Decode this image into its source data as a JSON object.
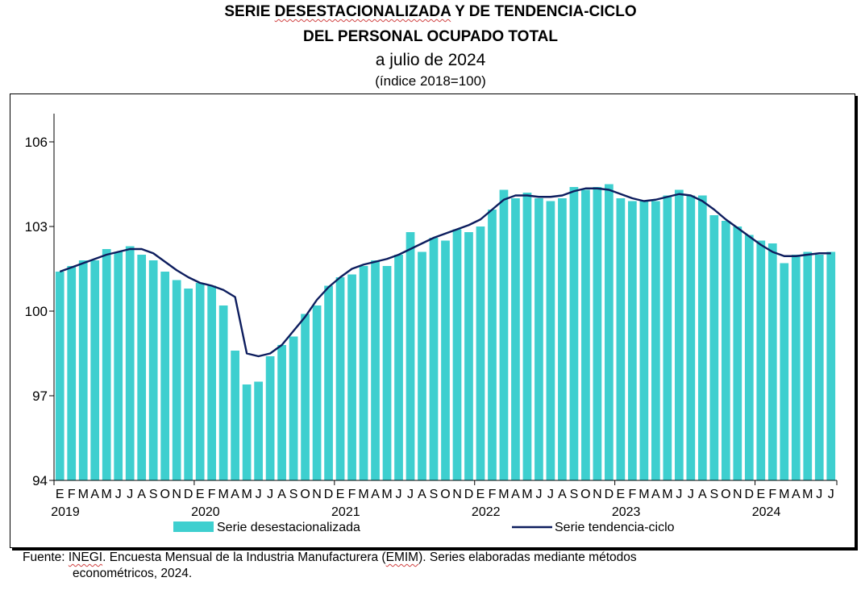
{
  "header": {
    "title_line1_pre": "SERIE ",
    "title_line1_squig": "DESESTACIONALIZADA",
    "title_line1_post": " Y DE TENDENCIA-CICLO",
    "title_line2": "DEL PERSONAL OCUPADO TOTAL",
    "subtitle": "a julio de 2024",
    "units": "(índice 2018=100)"
  },
  "source": {
    "prefix": "Fuente: ",
    "inegi": "INEGI",
    "part1": ". Encuesta Mensual de la Industria Manufacturera (",
    "emim": "EMIM",
    "part2": "). Series elaboradas mediante métodos",
    "line2": "econométricos, 2024."
  },
  "chart_data": {
    "type": "bar",
    "ylim": [
      94,
      107
    ],
    "yticks": [
      94,
      97,
      100,
      103,
      106
    ],
    "month_labels": [
      "E",
      "F",
      "M",
      "A",
      "M",
      "J",
      "J",
      "A",
      "S",
      "O",
      "N",
      "D"
    ],
    "years": [
      "2019",
      "2020",
      "2021",
      "2022",
      "2023",
      "2024"
    ],
    "series": [
      {
        "name": "Serie desestacionalizada",
        "kind": "bar",
        "color": "#3ecfcf",
        "values": [
          101.4,
          101.6,
          101.8,
          101.8,
          102.2,
          102.1,
          102.3,
          102.0,
          101.8,
          101.4,
          101.1,
          100.8,
          101.0,
          100.9,
          100.2,
          98.6,
          97.4,
          97.5,
          98.4,
          98.8,
          99.1,
          99.9,
          100.2,
          100.9,
          101.2,
          101.3,
          101.6,
          101.8,
          101.6,
          102.0,
          102.8,
          102.1,
          102.6,
          102.5,
          102.9,
          102.8,
          103.0,
          103.6,
          104.3,
          104.0,
          104.2,
          104.0,
          103.9,
          104.0,
          104.4,
          104.3,
          104.4,
          104.5,
          104.0,
          103.9,
          103.9,
          103.9,
          104.1,
          104.3,
          104.1,
          104.1,
          103.4,
          103.2,
          103.0,
          102.7,
          102.5,
          102.4,
          101.7,
          102.0,
          102.1,
          102.0,
          102.1
        ]
      },
      {
        "name": "Serie tendencia-ciclo",
        "kind": "line",
        "color": "#0d1d5e",
        "values": [
          101.4,
          101.55,
          101.7,
          101.85,
          102.0,
          102.1,
          102.2,
          102.2,
          102.05,
          101.75,
          101.45,
          101.2,
          101.0,
          100.9,
          100.75,
          100.5,
          98.5,
          98.4,
          98.5,
          98.8,
          99.3,
          99.8,
          100.4,
          100.85,
          101.2,
          101.5,
          101.65,
          101.75,
          101.85,
          102.0,
          102.2,
          102.4,
          102.6,
          102.75,
          102.9,
          103.05,
          103.25,
          103.6,
          103.95,
          104.1,
          104.1,
          104.05,
          104.05,
          104.1,
          104.25,
          104.35,
          104.35,
          104.3,
          104.15,
          104.0,
          103.9,
          103.95,
          104.05,
          104.15,
          104.1,
          103.9,
          103.6,
          103.25,
          102.95,
          102.65,
          102.35,
          102.1,
          101.95,
          101.95,
          102.0,
          102.05,
          102.05
        ]
      }
    ],
    "legend": "bottom"
  }
}
